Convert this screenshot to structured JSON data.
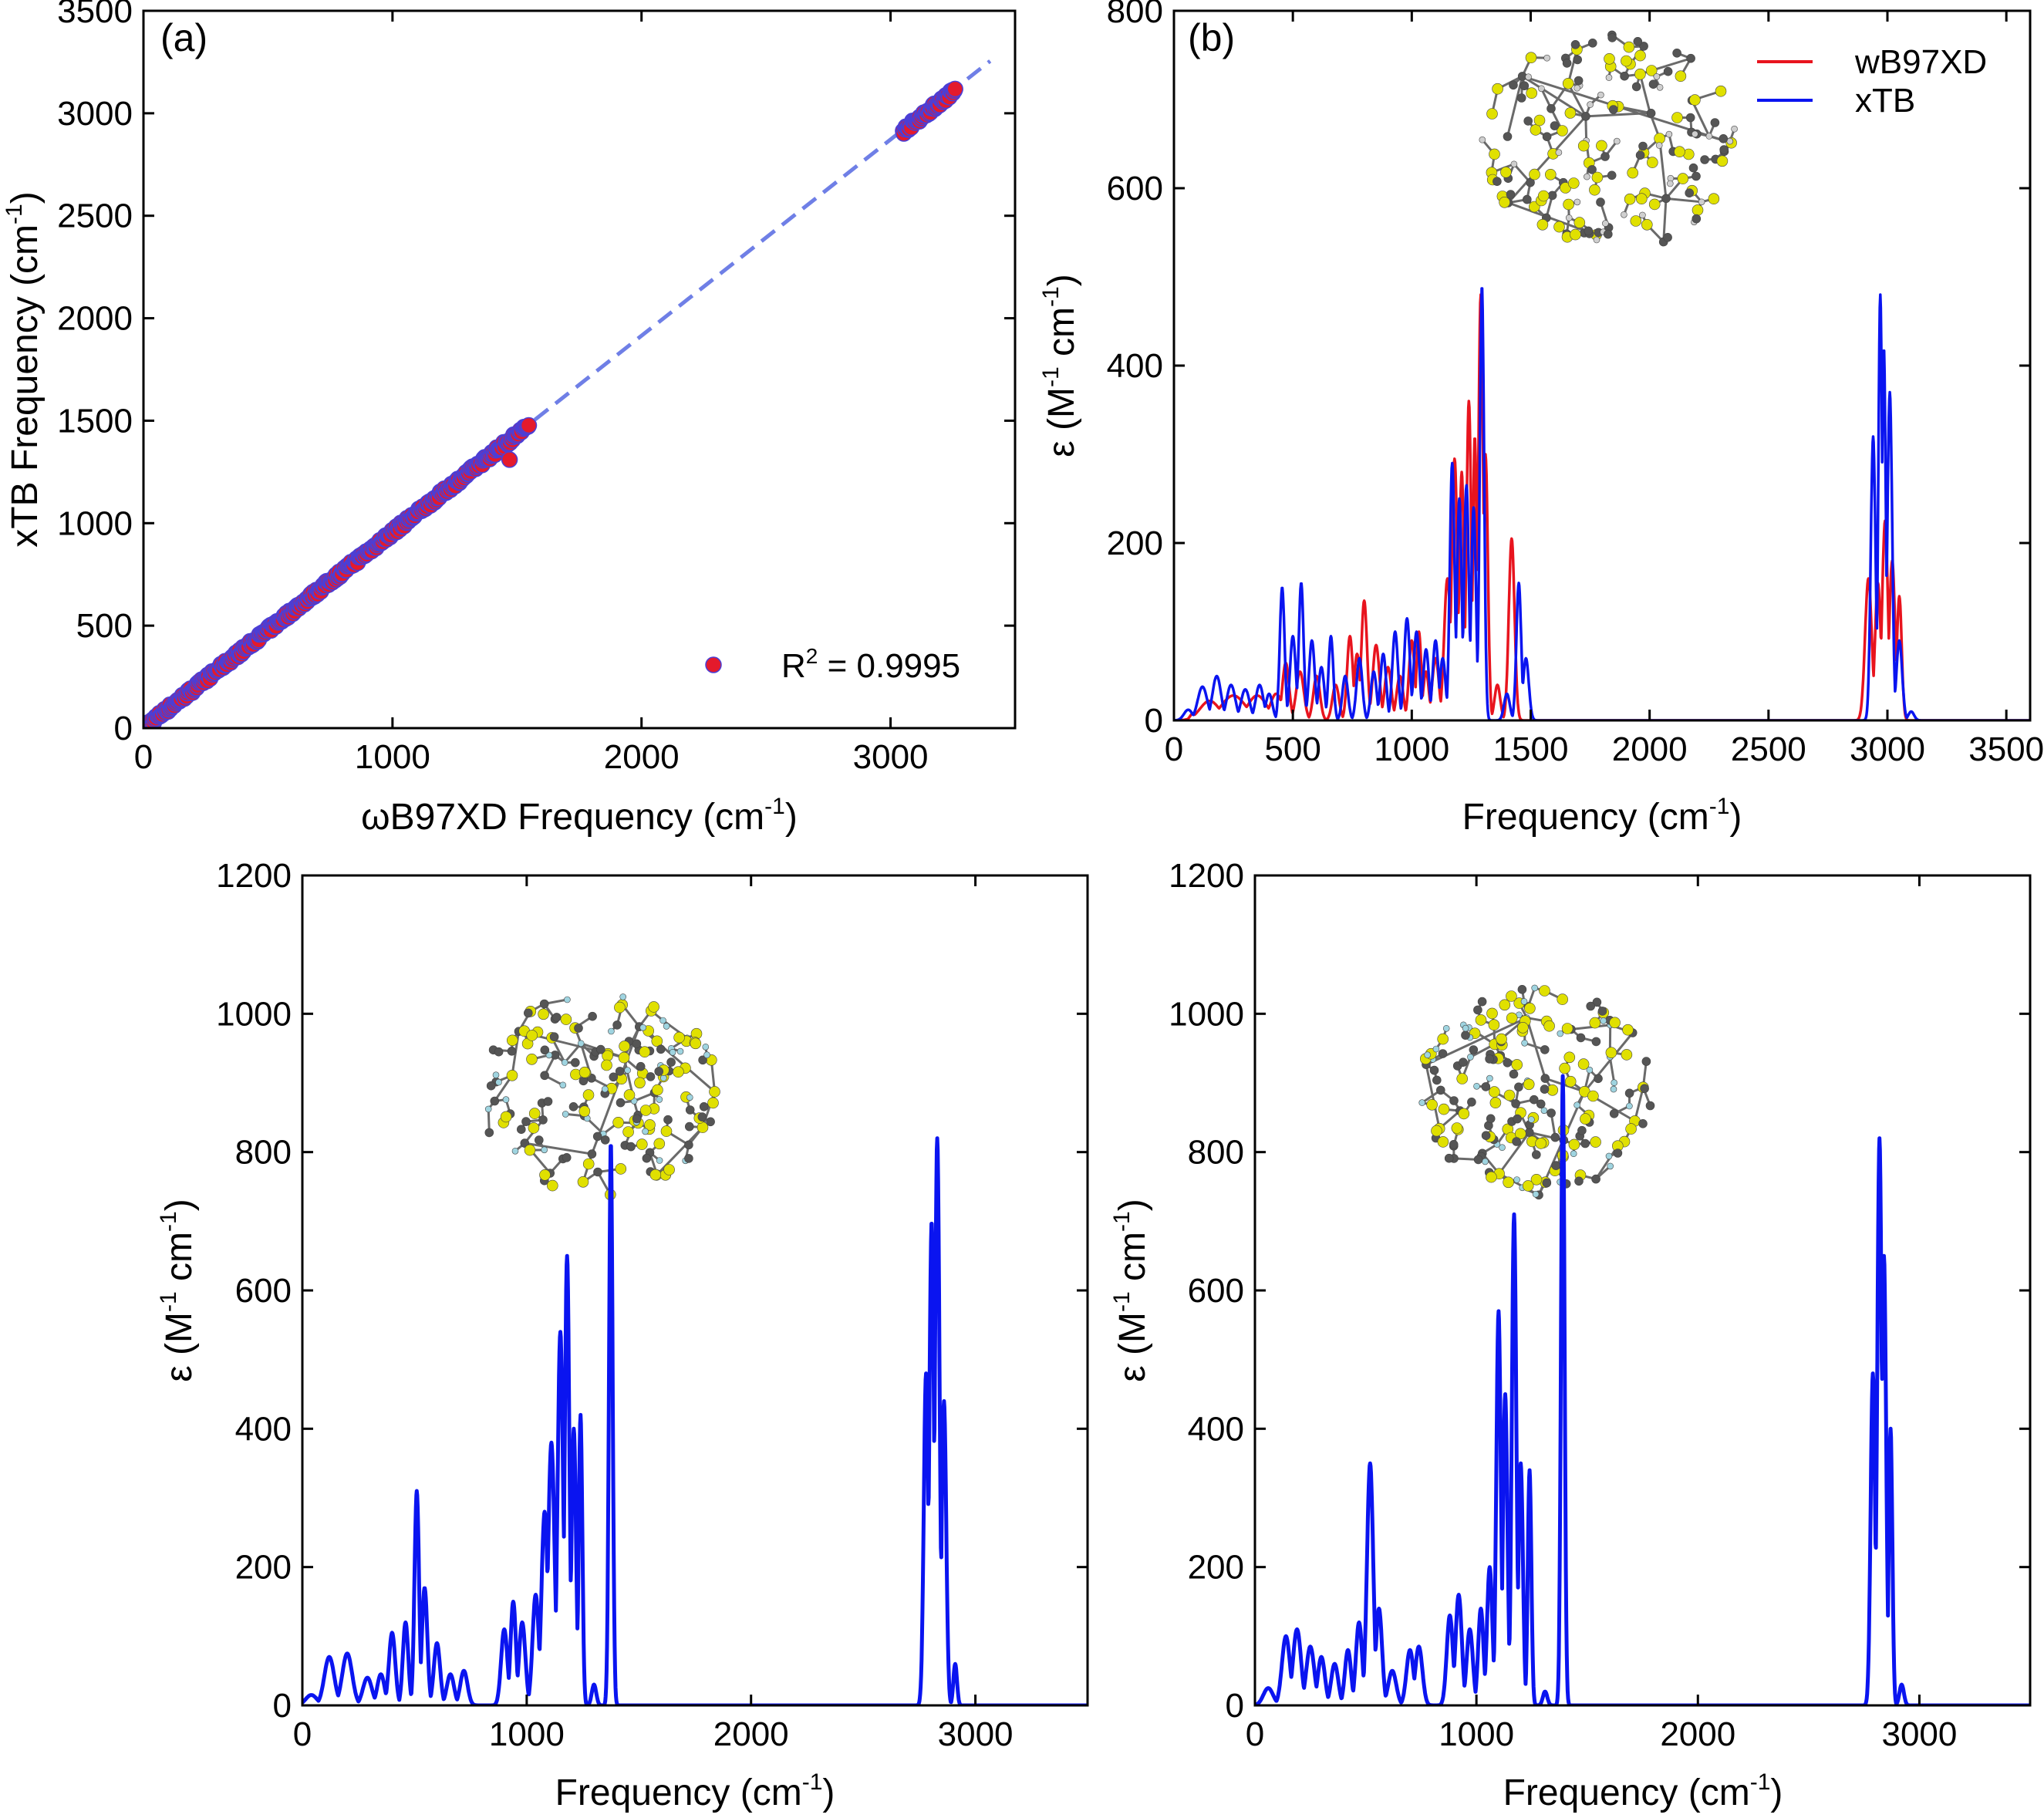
{
  "colors": {
    "axis": "#000000",
    "red": "#e8141e",
    "blue": "#0a14f0",
    "fit": "#6f7fe6",
    "scatter_fill": "#e41a2c",
    "scatter_edge": "#4b3fd6",
    "carbon": "#555555",
    "sulfur": "#e0e000",
    "hydrogen": "#9fd4e0",
    "hydrogen_grey": "#cfcfcf"
  },
  "chart_data": [
    {
      "id": "a",
      "type": "scatter",
      "panel_label": "(a)",
      "xlabel": "ωB97XD Frequency (cm",
      "xlabel_sup": "-1",
      "xlabel_end": ")",
      "ylabel": "xTB Frequency (cm",
      "ylabel_sup": "-1",
      "ylabel_end": ")",
      "xlim": [
        0,
        3500
      ],
      "ylim": [
        0,
        3500
      ],
      "xticks": [
        0,
        1000,
        2000,
        3000
      ],
      "yticks": [
        0,
        500,
        1000,
        1500,
        2000,
        2500,
        3000,
        3500
      ],
      "legend": {
        "text_pre": "R",
        "text_sup": "2",
        "text_post": " = 0.9995",
        "position": "bottom-right"
      },
      "fit_line": {
        "x": [
          0,
          3400
        ],
        "y": [
          0,
          3255
        ],
        "style": "dashed"
      },
      "clusters": [
        {
          "x_range": [
            10,
            1550
          ],
          "slope": 0.955,
          "note": "dense band of points"
        },
        {
          "x_range": [
            3050,
            3260
          ],
          "slope": 0.955,
          "note": "C-H stretch cluster"
        }
      ],
      "outliers": [
        {
          "x": 1470,
          "y": 1310
        }
      ]
    },
    {
      "id": "b",
      "type": "line",
      "panel_label": "(b)",
      "xlabel": "Frequency (cm",
      "xlabel_sup": "-1",
      "xlabel_end": ")",
      "ylabel": "ε (M",
      "ylabel_sup1": "-1",
      "ylabel_mid": " cm",
      "ylabel_sup2": "-1",
      "ylabel_end": ")",
      "xlim": [
        0,
        3600
      ],
      "ylim": [
        0,
        800
      ],
      "xticks": [
        0,
        500,
        1000,
        1500,
        2000,
        2500,
        3000,
        3500
      ],
      "yticks": [
        0,
        200,
        400,
        600,
        800
      ],
      "legend_position": "top-right",
      "series": [
        {
          "name": "wB97XD",
          "color_key": "red",
          "peaks": [
            [
              80,
              8,
              12
            ],
            [
              150,
              22,
              40
            ],
            [
              250,
              28,
              50
            ],
            [
              350,
              28,
              40
            ],
            [
              430,
              30,
              25
            ],
            [
              470,
              65,
              14
            ],
            [
              530,
              55,
              16
            ],
            [
              600,
              50,
              14
            ],
            [
              680,
              40,
              14
            ],
            [
              740,
              95,
              12
            ],
            [
              770,
              75,
              12
            ],
            [
              800,
              135,
              12
            ],
            [
              850,
              85,
              14
            ],
            [
              900,
              60,
              14
            ],
            [
              950,
              50,
              14
            ],
            [
              1000,
              90,
              12
            ],
            [
              1030,
              100,
              10
            ],
            [
              1060,
              55,
              12
            ],
            [
              1100,
              70,
              14
            ],
            [
              1150,
              160,
              14
            ],
            [
              1180,
              295,
              12
            ],
            [
              1210,
              280,
              10
            ],
            [
              1240,
              360,
              10
            ],
            [
              1265,
              320,
              8
            ],
            [
              1290,
              480,
              10
            ],
            [
              1310,
              300,
              10
            ],
            [
              1360,
              40,
              12
            ],
            [
              1420,
              205,
              12
            ],
            [
              2920,
              160,
              14
            ],
            [
              2960,
              155,
              12
            ],
            [
              2990,
              225,
              12
            ],
            [
              3020,
              180,
              12
            ],
            [
              3050,
              140,
              10
            ]
          ]
        },
        {
          "name": "xTB",
          "color_key": "blue",
          "peaks": [
            [
              60,
              12,
              18
            ],
            [
              120,
              38,
              20
            ],
            [
              180,
              50,
              18
            ],
            [
              240,
              40,
              18
            ],
            [
              300,
              35,
              18
            ],
            [
              360,
              40,
              16
            ],
            [
              400,
              30,
              14
            ],
            [
              455,
              150,
              10
            ],
            [
              500,
              95,
              12
            ],
            [
              535,
              155,
              10
            ],
            [
              580,
              90,
              12
            ],
            [
              620,
              60,
              12
            ],
            [
              660,
              95,
              10
            ],
            [
              720,
              50,
              12
            ],
            [
              780,
              70,
              12
            ],
            [
              840,
              55,
              12
            ],
            [
              880,
              75,
              12
            ],
            [
              930,
              100,
              12
            ],
            [
              980,
              115,
              12
            ],
            [
              1020,
              100,
              12
            ],
            [
              1060,
              80,
              12
            ],
            [
              1100,
              90,
              12
            ],
            [
              1130,
              70,
              12
            ],
            [
              1170,
              290,
              10
            ],
            [
              1200,
              250,
              10
            ],
            [
              1230,
              265,
              10
            ],
            [
              1260,
              240,
              10
            ],
            [
              1295,
              490,
              9
            ],
            [
              1400,
              30,
              12
            ],
            [
              1450,
              155,
              10
            ],
            [
              1480,
              70,
              12
            ],
            [
              2940,
              320,
              10
            ],
            [
              2970,
              480,
              8
            ],
            [
              2985,
              420,
              8
            ],
            [
              3010,
              370,
              10
            ],
            [
              3050,
              90,
              12
            ],
            [
              3100,
              10,
              12
            ]
          ]
        }
      ]
    },
    {
      "id": "c",
      "type": "line",
      "xlabel": "Frequency (cm",
      "xlabel_sup": "-1",
      "xlabel_end": ")",
      "ylabel": "ε (M",
      "ylabel_sup1": "-1",
      "ylabel_mid": " cm",
      "ylabel_sup2": "-1",
      "ylabel_end": ")",
      "xlim": [
        0,
        3500
      ],
      "ylim": [
        0,
        1200
      ],
      "xticks": [
        0,
        1000,
        2000,
        3000
      ],
      "yticks": [
        0,
        200,
        400,
        600,
        800,
        1000,
        1200
      ],
      "series": [
        {
          "color_key": "blue",
          "peaks": [
            [
              40,
              15,
              25
            ],
            [
              120,
              70,
              22
            ],
            [
              200,
              75,
              22
            ],
            [
              290,
              40,
              20
            ],
            [
              350,
              45,
              16
            ],
            [
              400,
              105,
              14
            ],
            [
              460,
              120,
              12
            ],
            [
              510,
              310,
              10
            ],
            [
              545,
              170,
              12
            ],
            [
              600,
              90,
              14
            ],
            [
              660,
              45,
              16
            ],
            [
              720,
              50,
              16
            ],
            [
              900,
              110,
              14
            ],
            [
              940,
              150,
              12
            ],
            [
              980,
              120,
              14
            ],
            [
              1040,
              160,
              14
            ],
            [
              1080,
              280,
              14
            ],
            [
              1110,
              380,
              14
            ],
            [
              1150,
              540,
              12
            ],
            [
              1180,
              650,
              10
            ],
            [
              1210,
              400,
              10
            ],
            [
              1240,
              420,
              8
            ],
            [
              1300,
              30,
              10
            ],
            [
              1375,
              815,
              8
            ],
            [
              2780,
              480,
              10
            ],
            [
              2805,
              700,
              10
            ],
            [
              2830,
              820,
              10
            ],
            [
              2860,
              440,
              10
            ],
            [
              2910,
              60,
              8
            ]
          ]
        }
      ]
    },
    {
      "id": "d",
      "type": "line",
      "xlabel": "Frequency (cm",
      "xlabel_sup": "-1",
      "xlabel_end": ")",
      "ylabel": "ε (M",
      "ylabel_sup1": "-1",
      "ylabel_mid": " cm",
      "ylabel_sup2": "-1",
      "ylabel_end": ")",
      "xlim": [
        0,
        3500
      ],
      "ylim": [
        0,
        1200
      ],
      "xticks": [
        0,
        1000,
        2000,
        3000
      ],
      "yticks": [
        0,
        200,
        400,
        600,
        800,
        1000,
        1200
      ],
      "series": [
        {
          "color_key": "blue",
          "peaks": [
            [
              60,
              25,
              22
            ],
            [
              140,
              100,
              18
            ],
            [
              190,
              110,
              18
            ],
            [
              250,
              85,
              18
            ],
            [
              300,
              70,
              16
            ],
            [
              360,
              60,
              16
            ],
            [
              420,
              80,
              14
            ],
            [
              470,
              120,
              14
            ],
            [
              520,
              350,
              14
            ],
            [
              560,
              140,
              14
            ],
            [
              620,
              50,
              18
            ],
            [
              700,
              80,
              16
            ],
            [
              740,
              85,
              16
            ],
            [
              880,
              130,
              14
            ],
            [
              920,
              160,
              14
            ],
            [
              970,
              110,
              14
            ],
            [
              1020,
              140,
              12
            ],
            [
              1060,
              200,
              12
            ],
            [
              1100,
              570,
              10
            ],
            [
              1130,
              450,
              10
            ],
            [
              1170,
              710,
              10
            ],
            [
              1200,
              350,
              10
            ],
            [
              1240,
              340,
              8
            ],
            [
              1310,
              20,
              10
            ],
            [
              1390,
              910,
              8
            ],
            [
              2790,
              480,
              10
            ],
            [
              2820,
              820,
              10
            ],
            [
              2840,
              650,
              10
            ],
            [
              2870,
              400,
              8
            ],
            [
              2920,
              30,
              10
            ]
          ]
        }
      ]
    }
  ]
}
